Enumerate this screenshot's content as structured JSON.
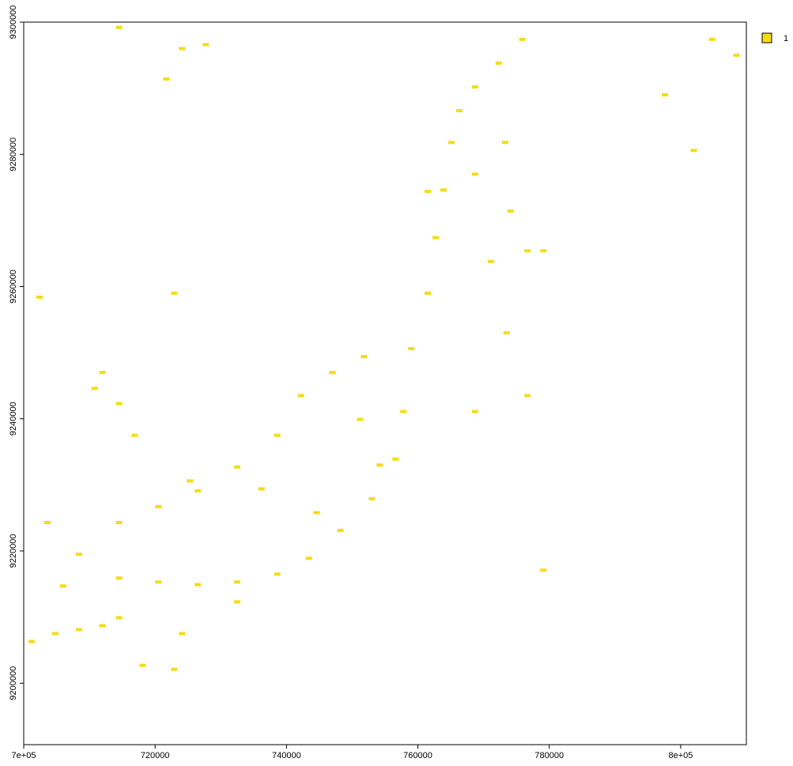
{
  "chart_data": {
    "type": "raster",
    "xlim": [
      700000,
      810000
    ],
    "ylim": [
      9190700,
      9300000
    ],
    "xticks": [
      {
        "value": 700000,
        "label": "7e+05"
      },
      720000,
      740000,
      760000,
      780000,
      {
        "value": 800000,
        "label": "8e+05"
      }
    ],
    "yticks": [
      9200000,
      9220000,
      9240000,
      9260000,
      9280000,
      9300000
    ],
    "legend": "top-right",
    "series": [
      {
        "name": "1",
        "color": "#f5dc14",
        "x": [
          701200,
          704800,
          708400,
          712000,
          714500,
          718100,
          722900,
          714500,
          720500,
          726500,
          732500,
          738600,
          743400,
          748200,
          753000,
          756600,
          757800,
          759000,
          761500,
          762700,
          763900,
          765100,
          766300,
          768700,
          772300,
          775900,
          708400,
          714500,
          720500,
          726500,
          732500,
          738600,
          742200,
          747000,
          751800,
          712000,
          710800,
          714500,
          721700,
          724100,
          727700,
          714500,
          722900,
          702400,
          751200,
          771100,
          773500,
          768700,
          776700,
          774100,
          776700,
          779100,
          804800,
          808500,
          797600,
          802000,
          779100,
          732500,
          724100,
          706000,
          703600,
          716900,
          725300,
          736200,
          744600,
          754200,
          773300,
          768700,
          761500
        ],
        "y": [
          9206300,
          9207500,
          9208100,
          9208700,
          9209900,
          9202700,
          9202100,
          9215900,
          9215300,
          9214900,
          9215300,
          9216500,
          9218900,
          9223100,
          9227900,
          9233900,
          9241100,
          9250600,
          9259000,
          9267400,
          9274600,
          9281800,
          9286600,
          9290200,
          9293800,
          9297400,
          9219500,
          9224300,
          9226700,
          9229100,
          9232700,
          9237500,
          9243500,
          9247000,
          9249400,
          9247000,
          9244600,
          9242300,
          9291400,
          9296000,
          9296600,
          9299200,
          9259000,
          9258400,
          9239900,
          9263800,
          9253000,
          9241100,
          9243500,
          9271400,
          9265400,
          9265400,
          9297400,
          9295000,
          9289000,
          9280600,
          9217100,
          9212300,
          9207500,
          9214700,
          9224300,
          9237500,
          9230600,
          9229400,
          9225800,
          9233000,
          9281800,
          9277000,
          9274400
        ]
      }
    ]
  }
}
